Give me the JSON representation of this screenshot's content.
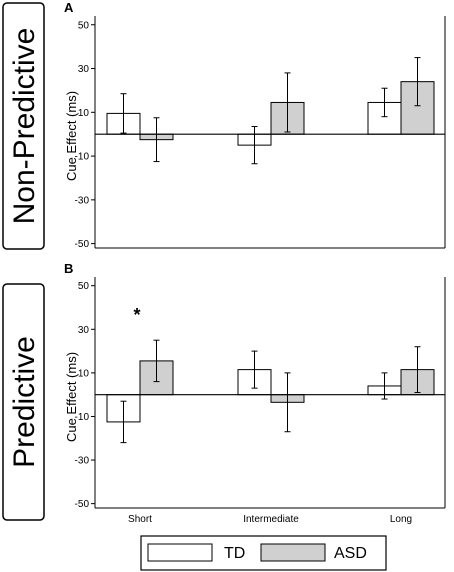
{
  "chart_data": [
    {
      "type": "bar",
      "panel_label": "A",
      "side_label": "Non-Predictive",
      "ylabel": "Cue Effect (ms)",
      "ylim": [
        -52,
        54
      ],
      "yticks": [
        50,
        30,
        10,
        -10,
        -30,
        -50
      ],
      "categories": [
        "Short",
        "Intermediate",
        "Long"
      ],
      "show_category_labels": false,
      "series": [
        {
          "name": "TD",
          "values": [
            9.5,
            -5,
            14.5
          ],
          "error": [
            9,
            8.5,
            6.5
          ]
        },
        {
          "name": "ASD",
          "values": [
            -2.5,
            14.5,
            24
          ],
          "error": [
            10,
            13.5,
            11
          ]
        }
      ],
      "annotations": []
    },
    {
      "type": "bar",
      "panel_label": "B",
      "side_label": "Predictive",
      "ylabel": "Cue Effect (ms)",
      "ylim": [
        -52,
        54
      ],
      "yticks": [
        50,
        30,
        10,
        -10,
        -30,
        -50
      ],
      "categories": [
        "Short",
        "Intermediate",
        "Long"
      ],
      "show_category_labels": true,
      "series": [
        {
          "name": "TD",
          "values": [
            -12.5,
            11.5,
            4
          ],
          "error": [
            9.5,
            8.5,
            6
          ]
        },
        {
          "name": "ASD",
          "values": [
            15.5,
            -3.5,
            11.5
          ],
          "error": [
            9.5,
            13.5,
            10.5
          ]
        }
      ],
      "annotations": [
        {
          "category": "Short",
          "text": "*"
        }
      ]
    }
  ],
  "legend": [
    {
      "label": "TD",
      "color": "#ffffff"
    },
    {
      "label": "ASD",
      "color": "#d0d0d0"
    }
  ],
  "colors": {
    "td": "#ffffff",
    "asd": "#d0d0d0",
    "axis": "#000000"
  }
}
